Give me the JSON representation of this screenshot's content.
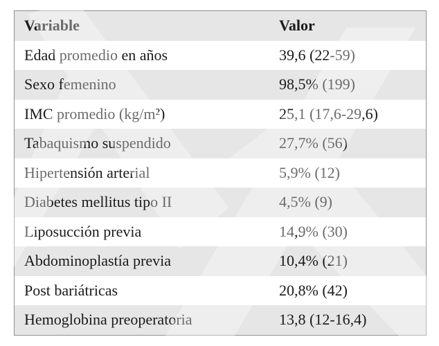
{
  "table": {
    "headers": [
      "Variable",
      "Valor"
    ],
    "rows": [
      [
        "Edad promedio en años",
        "39,6 (22-59)"
      ],
      [
        "Sexo femenino",
        "98,5% (199)"
      ],
      [
        "IMC promedio (kg/m²)",
        "25,1 (17,6-29,6)"
      ],
      [
        "Tabaquismo suspendido",
        "27,7% (56)"
      ],
      [
        "Hipertensión arterial",
        "5,9% (12)"
      ],
      [
        "Diabetes mellitus tipo II",
        "4,5% (9)"
      ],
      [
        "Liposucción previa",
        "14,9% (30)"
      ],
      [
        "Abdominoplastía previa",
        "10,4% (21)"
      ],
      [
        "Post bariátricas",
        "20,8% (42)"
      ],
      [
        "Hemoglobina preoperatoria",
        "13,8 (12-16,4)"
      ]
    ]
  },
  "colors": {
    "shaded_row": "#e6e6e6",
    "border": "#8f8f8f",
    "text": "#1a1a1a"
  }
}
